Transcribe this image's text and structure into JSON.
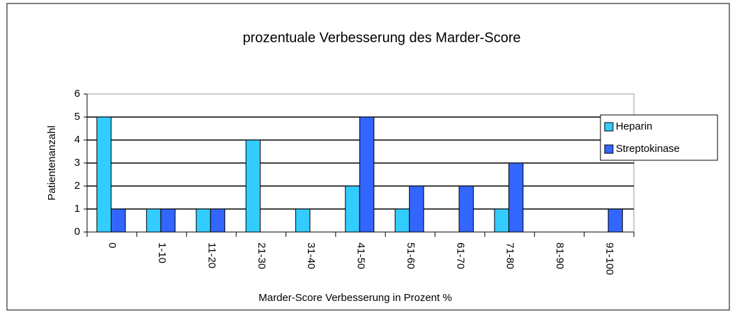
{
  "chart_data": {
    "type": "bar",
    "title": "prozentuale Verbesserung des  Marder-Score",
    "x_label": "Marder-Score Verbesserung in Prozent %",
    "y_label": "Patientenanzahl",
    "categories": [
      "0",
      "1-10",
      "11-20",
      "21-30",
      "31-40",
      "41-50",
      "51-60",
      "61-70",
      "71-80",
      "81-90",
      "91-100"
    ],
    "series": [
      {
        "name": "Heparin",
        "color": "#33ccff",
        "values": [
          5,
          1,
          1,
          4,
          1,
          2,
          1,
          0,
          1,
          0,
          0
        ]
      },
      {
        "name": "Streptokinase",
        "color": "#3366ff",
        "values": [
          1,
          1,
          1,
          0,
          0,
          5,
          2,
          2,
          3,
          0,
          1
        ]
      }
    ],
    "ylim": [
      0,
      6
    ],
    "yticks": [
      0,
      1,
      2,
      3,
      4,
      5,
      6
    ],
    "grid": true,
    "legend": "right"
  }
}
